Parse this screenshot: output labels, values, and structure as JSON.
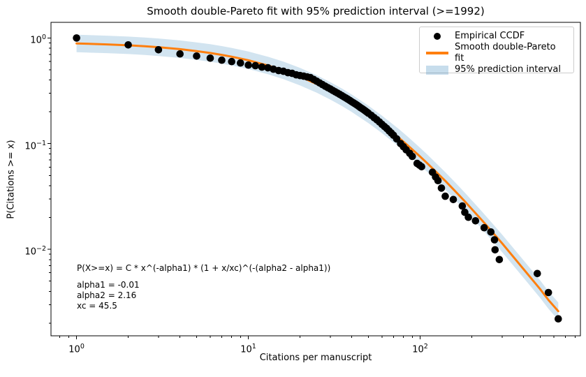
{
  "title": "Smooth double-Pareto fit with 95% prediction interval (>=1992)",
  "axes": {
    "xlabel": "Citations per manuscript",
    "ylabel": "P(Citations >= x)"
  },
  "legend": {
    "items": [
      {
        "label": "Empirical CCDF",
        "marker": "dot",
        "color": "#000000"
      },
      {
        "label": "Smooth double-Pareto fit",
        "marker": "line",
        "color": "#ff7f0e"
      },
      {
        "label": "95% prediction interval",
        "marker": "patch",
        "color": "#1f77b4",
        "opacity": 0.2
      }
    ]
  },
  "annotation": {
    "formula": "P(X>=x) = C * x^(-alpha1) * (1 + x/xc)^(-(alpha2 - alpha1))",
    "params": [
      "alpha1 = -0.01",
      "alpha2 = 2.16",
      "xc = 45.5"
    ]
  },
  "colors": {
    "fit_line": "#ff7f0e",
    "points": "#000000",
    "band": "#1f77b4",
    "band_opacity": 0.2,
    "legend_border": "#cccccc",
    "background": "#ffffff",
    "text": "#000000",
    "spine": "#000000"
  },
  "chart_data": {
    "type": "scatter",
    "title": "Smooth double-Pareto fit with 95% prediction interval (>=1992)",
    "xlabel": "Citations per manuscript",
    "ylabel": "P(Citations >= x)",
    "xscale": "log",
    "yscale": "log",
    "xlim": [
      0.71,
      857
    ],
    "ylim": [
      0.00152,
      1.405
    ],
    "grid": false,
    "legend_position": "upper right",
    "x_major_ticks": {
      "values": [
        1,
        10,
        100
      ],
      "labels": [
        "10^0",
        "10^1",
        "10^2"
      ]
    },
    "y_major_ticks": {
      "values": [
        1,
        0.1,
        0.01
      ],
      "labels": [
        "10^0",
        "10^−1",
        "10^−2"
      ]
    },
    "x_minor_ticks": [
      0.8,
      0.9,
      2,
      3,
      4,
      5,
      6,
      7,
      8,
      9,
      20,
      30,
      40,
      50,
      60,
      70,
      80,
      90,
      200,
      300,
      400,
      500,
      600,
      700,
      800
    ],
    "y_minor_ticks": [
      0.002,
      0.003,
      0.004,
      0.005,
      0.006,
      0.007,
      0.008,
      0.009,
      0.02,
      0.03,
      0.04,
      0.05,
      0.06,
      0.07,
      0.08,
      0.09,
      0.2,
      0.3,
      0.4,
      0.5,
      0.6,
      0.7,
      0.8,
      0.9
    ],
    "fit_model": {
      "alpha1": -0.01,
      "alpha2": 2.16,
      "xc": 45.5
    },
    "series": [
      {
        "name": "Empirical CCDF",
        "type": "scatter",
        "color": "#000000",
        "marker_radius": 5.3,
        "points": [
          [
            1,
            1.0
          ],
          [
            2,
            0.86
          ],
          [
            3,
            0.773
          ],
          [
            4,
            0.706
          ],
          [
            5,
            0.674
          ],
          [
            6,
            0.644
          ],
          [
            7,
            0.616
          ],
          [
            8,
            0.598
          ],
          [
            9,
            0.58
          ],
          [
            10,
            0.554
          ],
          [
            11,
            0.546
          ],
          [
            12,
            0.53
          ],
          [
            13,
            0.522
          ],
          [
            14,
            0.506
          ],
          [
            15,
            0.491
          ],
          [
            16,
            0.484
          ],
          [
            17,
            0.469
          ],
          [
            18,
            0.462
          ],
          [
            19,
            0.448
          ],
          [
            20,
            0.441
          ],
          [
            21,
            0.435
          ],
          [
            22,
            0.428
          ],
          [
            23,
            0.421
          ],
          [
            24,
            0.405
          ],
          [
            25,
            0.39
          ],
          [
            26,
            0.375
          ],
          [
            27,
            0.362
          ],
          [
            28,
            0.35
          ],
          [
            29,
            0.339
          ],
          [
            30,
            0.329
          ],
          [
            31,
            0.319
          ],
          [
            32,
            0.31
          ],
          [
            33,
            0.301
          ],
          [
            34,
            0.293
          ],
          [
            35,
            0.285
          ],
          [
            36,
            0.277
          ],
          [
            37,
            0.27
          ],
          [
            38,
            0.263
          ],
          [
            39,
            0.256
          ],
          [
            40,
            0.249
          ],
          [
            41,
            0.243
          ],
          [
            42,
            0.237
          ],
          [
            43,
            0.231
          ],
          [
            44,
            0.225
          ],
          [
            45,
            0.219
          ],
          [
            46,
            0.214
          ],
          [
            47,
            0.209
          ],
          [
            48,
            0.204
          ],
          [
            49,
            0.199
          ],
          [
            50,
            0.194
          ],
          [
            52,
            0.185
          ],
          [
            54,
            0.176
          ],
          [
            56,
            0.168
          ],
          [
            58,
            0.16
          ],
          [
            60,
            0.152
          ],
          [
            62,
            0.145
          ],
          [
            64,
            0.139
          ],
          [
            66,
            0.132
          ],
          [
            68,
            0.126
          ],
          [
            70,
            0.12
          ],
          [
            73,
            0.111
          ],
          [
            77,
            0.1
          ],
          [
            80,
            0.0934
          ],
          [
            83,
            0.0874
          ],
          [
            87,
            0.081
          ],
          [
            90,
            0.0758
          ],
          [
            96,
            0.065
          ],
          [
            99,
            0.0627
          ],
          [
            102,
            0.0605
          ],
          [
            118,
            0.0536
          ],
          [
            123,
            0.0484
          ],
          [
            127,
            0.0447
          ],
          [
            133,
            0.038
          ],
          [
            140,
            0.0318
          ],
          [
            156,
            0.0296
          ],
          [
            176,
            0.0257
          ],
          [
            182,
            0.0224
          ],
          [
            191,
            0.0201
          ],
          [
            210,
            0.0186
          ],
          [
            236,
            0.016
          ],
          [
            258,
            0.0146
          ],
          [
            271,
            0.0123
          ],
          [
            273,
            0.0099
          ],
          [
            289,
            0.008
          ],
          [
            481,
            0.0059
          ],
          [
            558,
            0.0039
          ],
          [
            637,
            0.0022
          ]
        ]
      },
      {
        "name": "Smooth double-Pareto fit",
        "type": "line",
        "color": "#ff7f0e",
        "width": 3,
        "points": [
          [
            1,
            0.887
          ],
          [
            1.5,
            0.869
          ],
          [
            2,
            0.852
          ],
          [
            2.5,
            0.834
          ],
          [
            3,
            0.817
          ],
          [
            4,
            0.783
          ],
          [
            5,
            0.751
          ],
          [
            6,
            0.721
          ],
          [
            7,
            0.692
          ],
          [
            8,
            0.665
          ],
          [
            10,
            0.615
          ],
          [
            13,
            0.549
          ],
          [
            16,
            0.493
          ],
          [
            20,
            0.43
          ],
          [
            25,
            0.367
          ],
          [
            30,
            0.316
          ],
          [
            35,
            0.275
          ],
          [
            40,
            0.241
          ],
          [
            50,
            0.189
          ],
          [
            60,
            0.152
          ],
          [
            75,
            0.114
          ],
          [
            85,
            0.0957
          ],
          [
            100,
            0.0755
          ],
          [
            110,
            0.0653
          ],
          [
            140,
            0.0444
          ],
          [
            160,
            0.0355
          ],
          [
            180,
            0.029
          ],
          [
            230,
            0.0187
          ],
          [
            300,
            0.0114
          ],
          [
            400,
            0.0065
          ],
          [
            500,
            0.0042
          ],
          [
            560,
            0.0033
          ],
          [
            637,
            0.0026
          ]
        ]
      },
      {
        "name": "95% prediction interval",
        "type": "band",
        "color": "#1f77b4",
        "opacity": 0.2,
        "around": "Smooth double-Pareto fit",
        "factor": 1.21
      }
    ]
  }
}
